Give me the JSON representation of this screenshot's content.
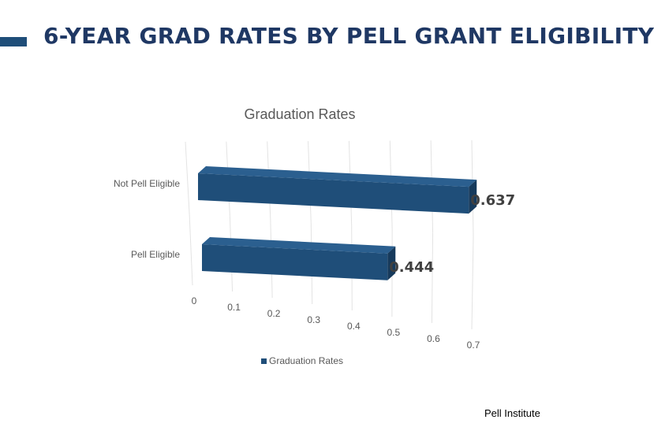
{
  "slide": {
    "title": "6-YEAR GRAD RATES BY PELL GRANT ELIGIBILITY",
    "footer": "Pell Institute",
    "accent_color": "#1f4e79",
    "title_color": "#1f3864"
  },
  "chart_data": {
    "type": "bar",
    "orientation": "horizontal",
    "style": "3d",
    "title": "Graduation Rates",
    "categories": [
      "Pell Eligible",
      "Not Pell Eligible"
    ],
    "series": [
      {
        "name": "Graduation Rates",
        "values": [
          0.444,
          0.637
        ],
        "color": "#1f4e79"
      }
    ],
    "data_labels": [
      "0.444",
      "0.637"
    ],
    "x_ticks": [
      "0",
      "0.1",
      "0.2",
      "0.3",
      "0.4",
      "0.5",
      "0.6",
      "0.7"
    ],
    "xlim": [
      0,
      0.7
    ],
    "grid": true,
    "legend": "bottom"
  }
}
